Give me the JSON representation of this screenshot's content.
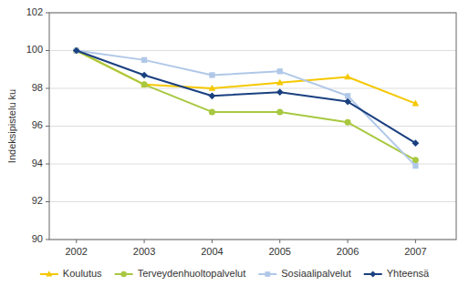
{
  "chart_data": {
    "type": "line",
    "x": [
      2002,
      2003,
      2004,
      2005,
      2006,
      2007
    ],
    "xlim": [
      2001.6,
      2007.6
    ],
    "xticks": [
      2002,
      2003,
      2004,
      2005,
      2006,
      2007
    ],
    "ylabel": "Indeksipistelu ku",
    "ylim": [
      90,
      102
    ],
    "yticks": [
      90,
      92,
      94,
      96,
      98,
      100,
      102
    ],
    "grid": true,
    "legend": "bottom",
    "series": [
      {
        "name": "Koulutus",
        "color": "#f5c800",
        "marker": "triangle",
        "values": [
          100.0,
          98.2,
          98.0,
          98.3,
          98.6,
          97.2
        ]
      },
      {
        "name": "Terveydenhuoltopalvelut",
        "color": "#a8c840",
        "marker": "circle",
        "values": [
          100.0,
          98.2,
          96.75,
          96.75,
          96.2,
          94.2
        ]
      },
      {
        "name": "Sosiaalipalvelut",
        "color": "#b0c8e8",
        "marker": "square",
        "values": [
          100.0,
          99.5,
          98.7,
          98.9,
          97.6,
          93.9
        ]
      },
      {
        "name": "Yhteensä",
        "color": "#1a4080",
        "marker": "diamond",
        "values": [
          100.0,
          98.7,
          97.6,
          97.8,
          97.3,
          95.1
        ]
      }
    ]
  }
}
